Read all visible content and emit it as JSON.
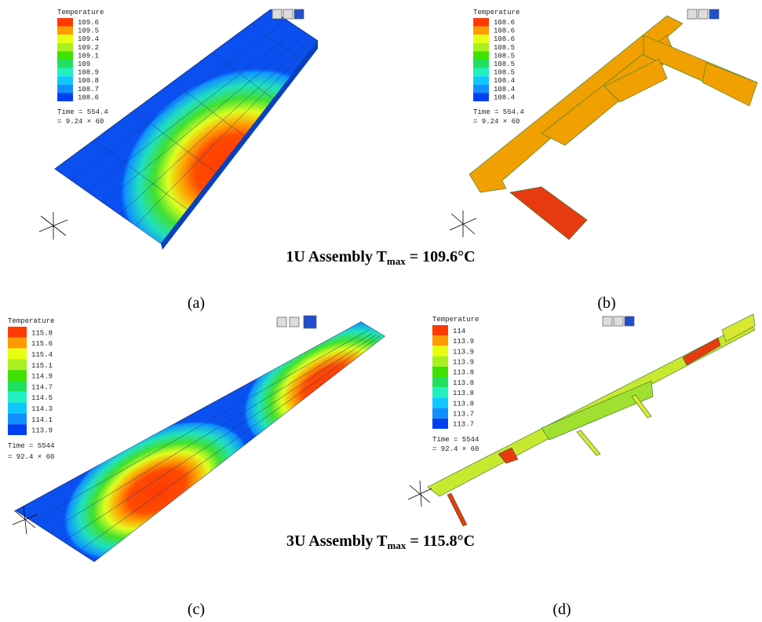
{
  "panels": [
    {
      "legend_title": "Temperature",
      "legend_labels": [
        "109.6",
        "109.5",
        "109.4",
        "109.2",
        "109.1",
        "109",
        "108.9",
        "108.8",
        "108.7",
        "108.6"
      ],
      "time": "Time = 554.4",
      "time_factor": "= 9.24 × 60",
      "caption": "(a)"
    },
    {
      "legend_title": "Temperature",
      "legend_labels": [
        "108.6",
        "108.6",
        "108.6",
        "108.5",
        "108.5",
        "108.5",
        "108.5",
        "108.4",
        "108.4",
        "108.4"
      ],
      "time": "Time = 554.4",
      "time_factor": "= 9.24 × 60",
      "caption": "(b)"
    },
    {
      "legend_title": "Temperature",
      "legend_labels": [
        "115.8",
        "115.6",
        "115.4",
        "115.1",
        "114.9",
        "114.7",
        "114.5",
        "114.3",
        "114.1",
        "113.9"
      ],
      "time": "Time = 5544",
      "time_factor": "= 92.4 × 60",
      "caption": "(c)"
    },
    {
      "legend_title": "Temperature",
      "legend_labels": [
        "114",
        "113.9",
        "113.9",
        "113.9",
        "113.8",
        "113.8",
        "113.8",
        "113.8",
        "113.7",
        "113.7"
      ],
      "time": "Time = 5544",
      "time_factor": "= 92.4 × 60",
      "caption": "(d)"
    }
  ],
  "group_titles": [
    {
      "prefix": "1U Assembly T",
      "subscript": "max",
      "suffix": "= 109.6°C"
    },
    {
      "prefix": "3U Assembly T",
      "subscript": "max",
      "suffix": "= 115.8°C"
    }
  ]
}
